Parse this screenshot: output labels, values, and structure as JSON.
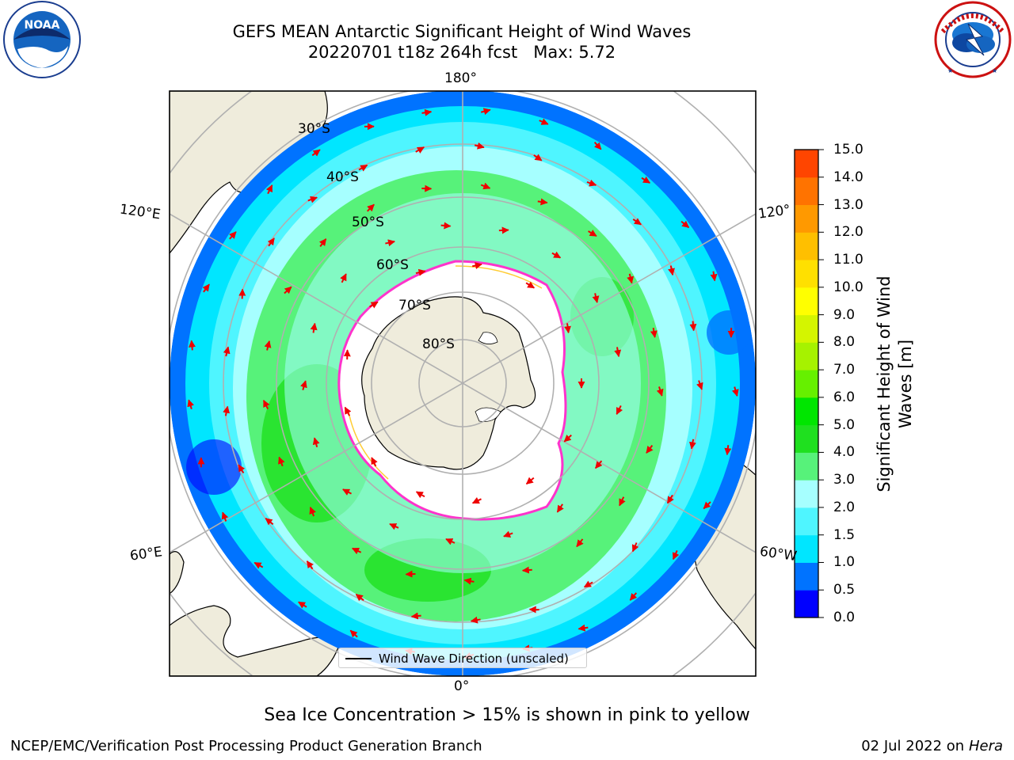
{
  "title": {
    "line1": "GEFS MEAN Antarctic Significant Height of Wind Waves",
    "line2": "20220701 t18z 264h fcst   Max: 5.72"
  },
  "logos": {
    "left": {
      "text": "NOAA",
      "ring": "NATIONAL OCEANIC AND ATMOSPHERIC ADMINISTRATION",
      "bottom": "U.S. DEPARTMENT OF COMMERCE"
    },
    "right": {
      "ring": "NATIONAL WEATHER SERVICE"
    }
  },
  "map": {
    "lon_labels": {
      "top": "180°",
      "bottom": "0°",
      "left_upper": "120°E",
      "left_lower": "60°E",
      "right_upper": "120°",
      "right_lower": "60°W"
    },
    "lat_labels": [
      "30°S",
      "40°S",
      "50°S",
      "60°S",
      "70°S",
      "80°S"
    ],
    "legend": "Wind Wave Direction (unscaled)",
    "colors": {
      "land": "#efecdc",
      "ice": "#ffffff",
      "grid": "#b0b0b0",
      "arrow": "#ee0000",
      "ice_edge": "#ff33cc"
    }
  },
  "colorbar": {
    "label": "Significant Height of Wind Waves [m]",
    "ticks": [
      "15.0",
      "14.0",
      "13.0",
      "12.0",
      "11.0",
      "10.0",
      "9.0",
      "8.0",
      "7.0",
      "6.0",
      "5.0",
      "4.0",
      "3.0",
      "2.0",
      "1.5",
      "1.0",
      "0.5",
      "0.0"
    ],
    "colors": [
      "#0000ff",
      "#0073ff",
      "#00e6ff",
      "#4ff5ff",
      "#a6ffff",
      "#57f27a",
      "#1fe01f",
      "#00e600",
      "#66f000",
      "#a6f200",
      "#d4f500",
      "#ffff00",
      "#ffe000",
      "#ffbf00",
      "#ff9900",
      "#ff7300",
      "#ff4500",
      "#ff0000"
    ]
  },
  "notes": {
    "ice": "Sea Ice Concentration > 15% is shown in pink to yellow",
    "footer_left": "NCEP/EMC/Verification Post Processing Product Generation Branch",
    "footer_date": "02 Jul 2022 on ",
    "footer_host": "Hera"
  }
}
